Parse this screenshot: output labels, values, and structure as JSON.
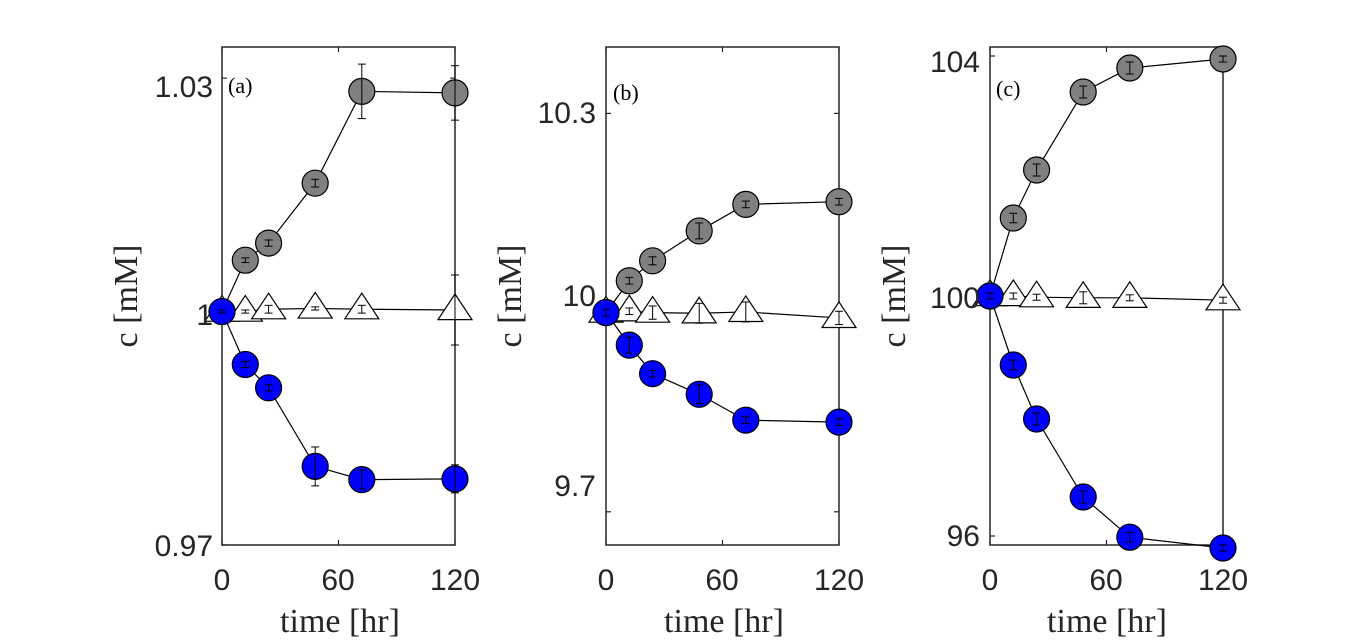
{
  "colors": {
    "gray_marker": "#808080",
    "blue_marker": "#0000ff",
    "triangle_marker": "#ffffff",
    "line": "#000000",
    "axis": "#262626"
  },
  "chart_data": [
    {
      "type": "line",
      "panel_label": "(a)",
      "xlabel": "time [hr]",
      "ylabel": "c [mM]",
      "xlim": [
        0,
        120
      ],
      "ylim": [
        0.97,
        1.034
      ],
      "xticks": [
        0,
        60,
        120
      ],
      "xtick_labels": [
        "0",
        "60",
        "120"
      ],
      "yticks": [
        0.97,
        1.0,
        1.03
      ],
      "ytick_labels": [
        "0.97",
        "1",
        "1.03"
      ],
      "x": [
        0,
        12,
        24,
        48,
        72,
        120
      ],
      "series": [
        {
          "name": "gray",
          "marker": "circle",
          "values": [
            1.0,
            1.0066,
            1.0088,
            1.0165,
            1.0283,
            1.0281
          ],
          "errors": [
            0.0002,
            0.0003,
            0.0004,
            0.0005,
            0.0035,
            0.0035
          ]
        },
        {
          "name": "triangle",
          "marker": "triangle",
          "values": [
            1.0,
            1.0,
            1.0003,
            1.0004,
            1.0003,
            1.0002
          ],
          "errors": [
            0.0002,
            0.0002,
            0.0005,
            0.0002,
            0.0005,
            0.0045
          ]
        },
        {
          "name": "blue",
          "marker": "circle",
          "values": [
            1.0,
            0.9932,
            0.9902,
            0.9801,
            0.9784,
            0.9785
          ],
          "errors": [
            0.0002,
            0.0004,
            0.0004,
            0.0025,
            0.0012,
            0.0018
          ]
        }
      ]
    },
    {
      "type": "line",
      "panel_label": "(b)",
      "xlabel": "time [hr]",
      "ylabel": "c [mM]",
      "xlim": [
        0,
        120
      ],
      "ylim": [
        9.65,
        10.4
      ],
      "xticks": [
        0,
        60,
        120
      ],
      "xtick_labels": [
        "0",
        "60",
        "120"
      ],
      "yticks": [
        9.7,
        10.0,
        10.3
      ],
      "ytick_labels": [
        "9.7",
        "10",
        "10.3"
      ],
      "x": [
        0,
        12,
        24,
        48,
        72,
        120
      ],
      "series": [
        {
          "name": "gray",
          "marker": "circle",
          "values": [
            10.0,
            10.048,
            10.078,
            10.123,
            10.163,
            10.167
          ],
          "errors": [
            0.005,
            0.005,
            0.006,
            0.012,
            0.005,
            0.005
          ]
        },
        {
          "name": "triangle",
          "marker": "triangle",
          "values": [
            10.0,
            10.002,
            10.0,
            9.999,
            10.001,
            9.992
          ],
          "errors": [
            0.005,
            0.005,
            0.01,
            0.015,
            0.015,
            0.01
          ]
        },
        {
          "name": "blue",
          "marker": "circle",
          "values": [
            10.0,
            9.951,
            9.908,
            9.877,
            9.838,
            9.835
          ],
          "errors": [
            0.005,
            0.012,
            0.005,
            0.014,
            0.005,
            0.005
          ]
        }
      ]
    },
    {
      "type": "line",
      "panel_label": "(c)",
      "xlabel": "time [hr]",
      "ylabel": "c [mM]",
      "xlim": [
        0,
        120
      ],
      "ylim": [
        95.85,
        104.15
      ],
      "xticks": [
        0,
        60,
        120
      ],
      "xtick_labels": [
        "0",
        "60",
        "120"
      ],
      "yticks": [
        96,
        100,
        104
      ],
      "ytick_labels": [
        "96",
        "100",
        "104"
      ],
      "x": [
        0,
        12,
        24,
        48,
        72,
        120
      ],
      "series": [
        {
          "name": "gray",
          "marker": "circle",
          "values": [
            100.0,
            101.3,
            102.1,
            103.4,
            103.8,
            103.95
          ],
          "errors": [
            0.05,
            0.08,
            0.1,
            0.1,
            0.1,
            0.05
          ]
        },
        {
          "name": "triangle",
          "marker": "triangle",
          "values": [
            100.0,
            100.0,
            99.98,
            99.97,
            99.97,
            99.93
          ],
          "errors": [
            0.05,
            0.05,
            0.05,
            0.1,
            0.05,
            0.05
          ]
        },
        {
          "name": "blue",
          "marker": "circle",
          "values": [
            100.0,
            98.85,
            97.95,
            96.65,
            95.98,
            95.8
          ],
          "errors": [
            0.05,
            0.08,
            0.1,
            0.1,
            0.08,
            0.05
          ]
        }
      ]
    }
  ]
}
